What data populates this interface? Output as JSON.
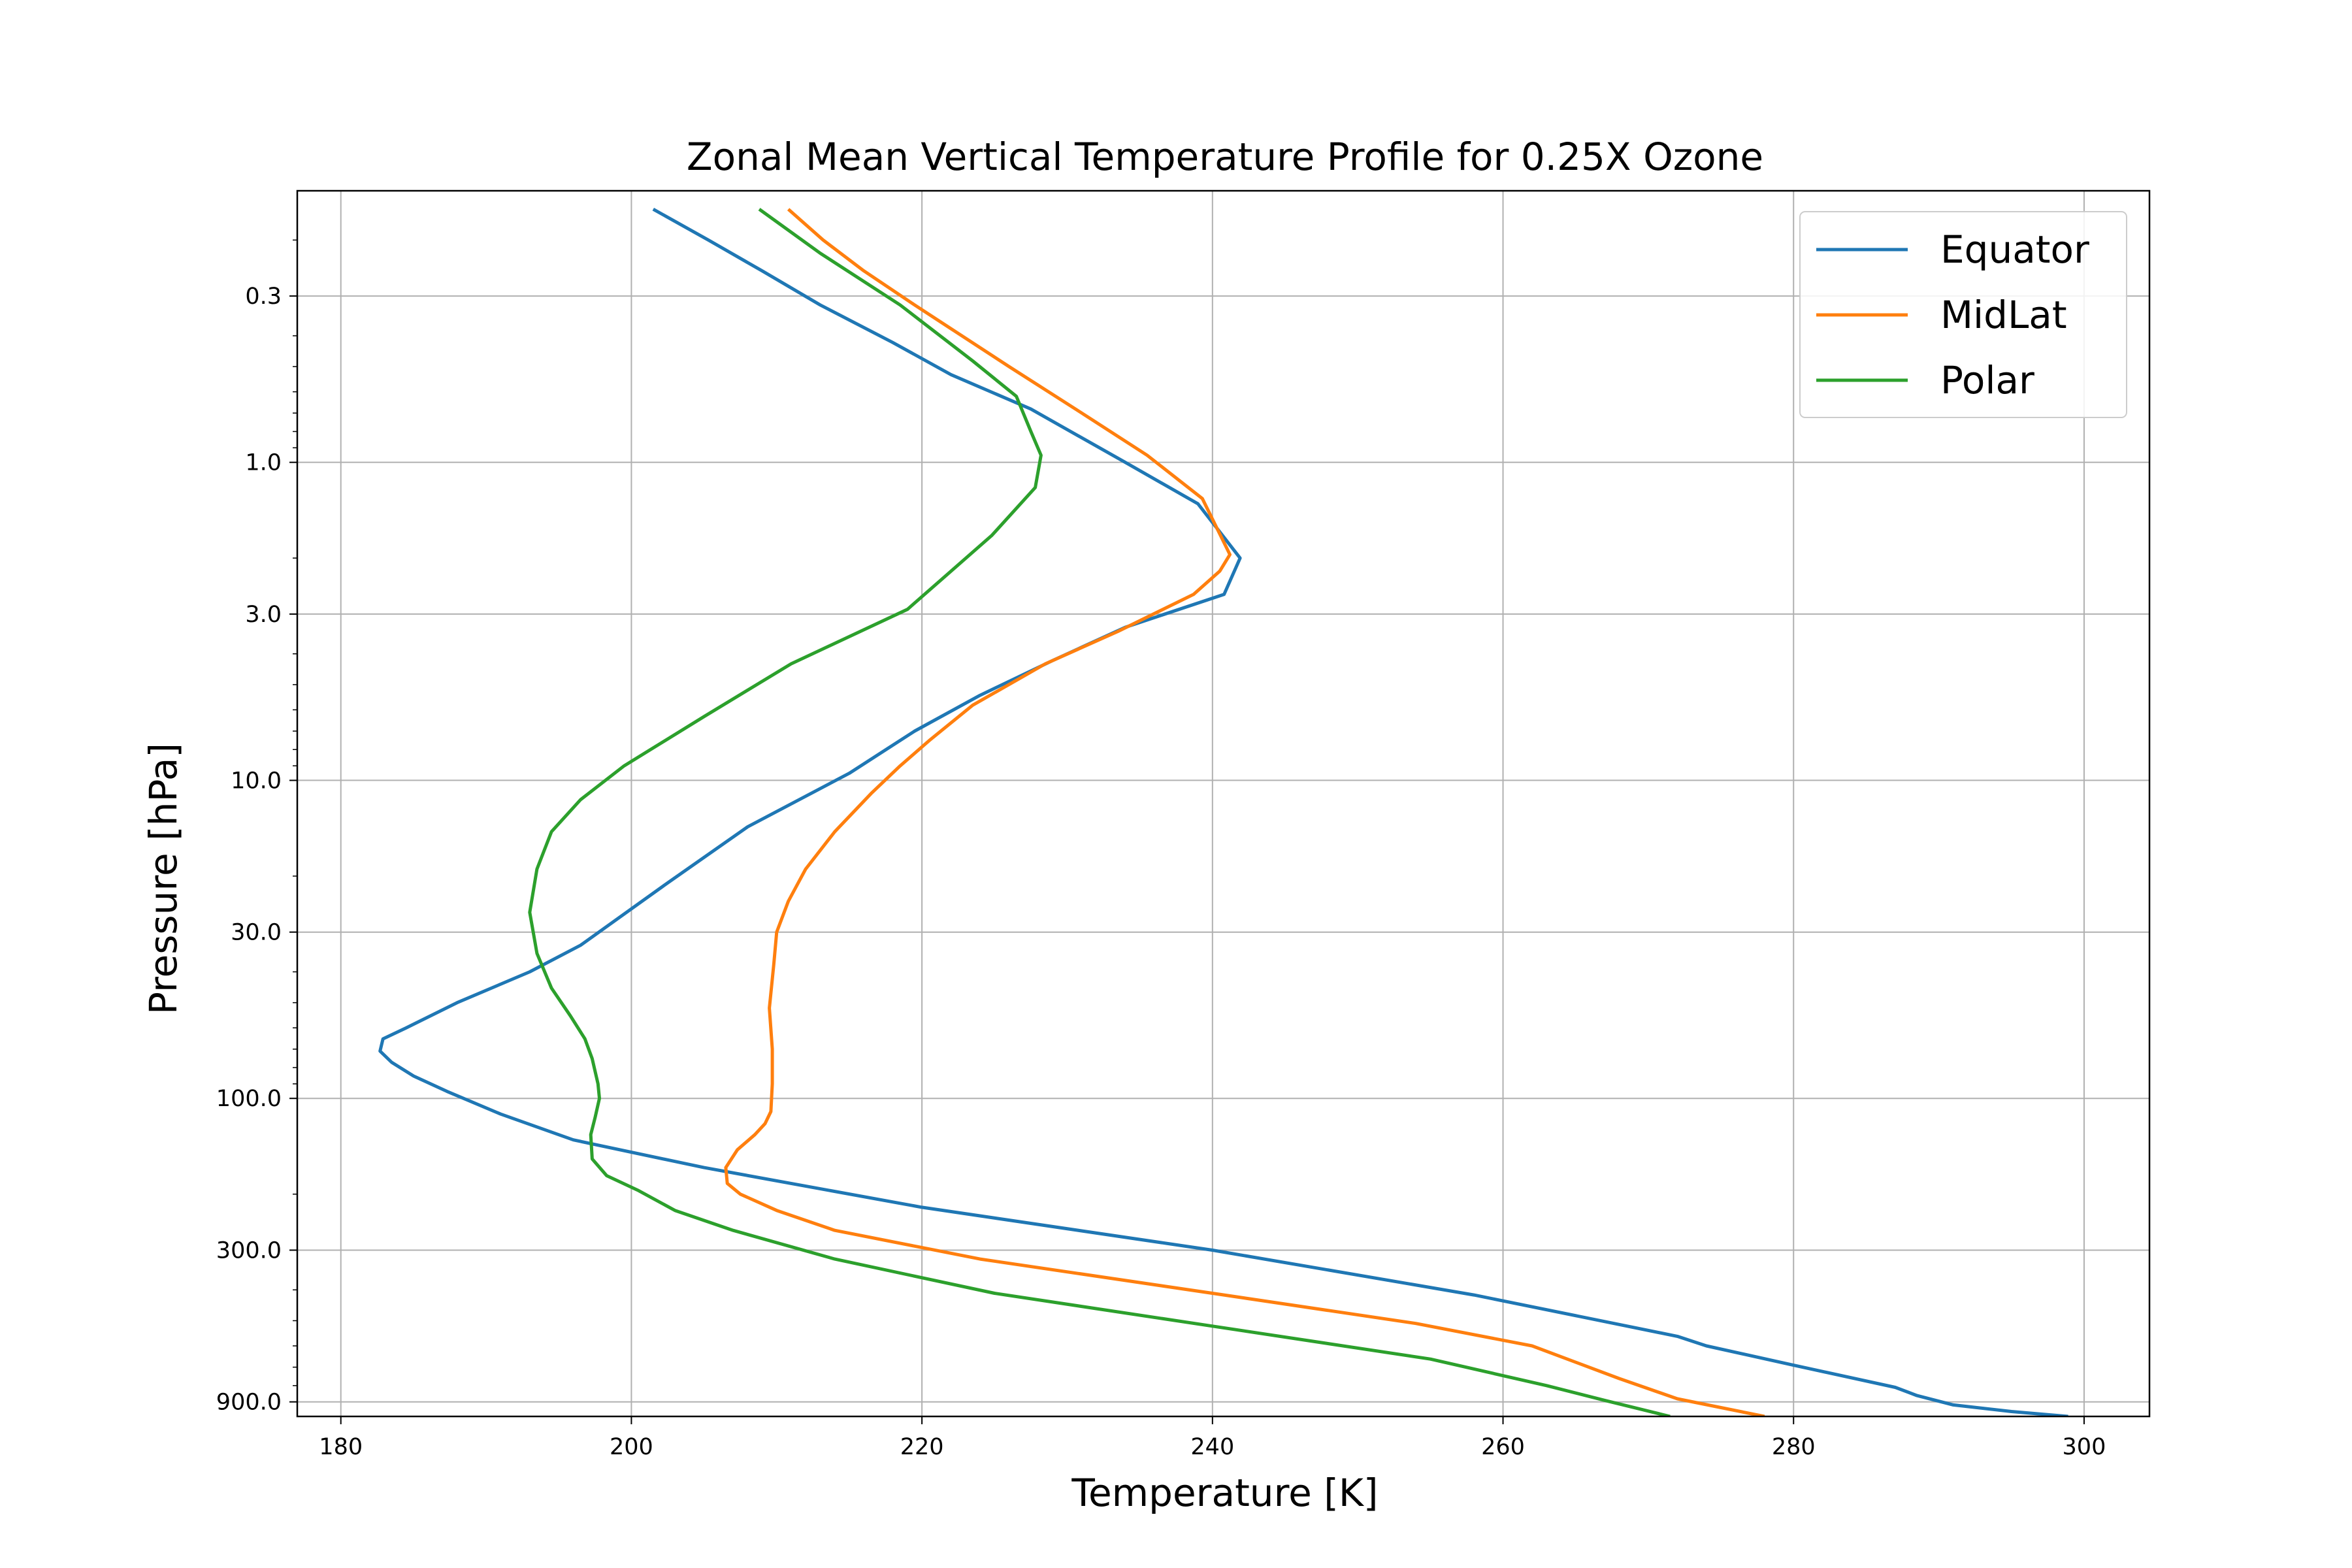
{
  "chart_data": {
    "type": "line",
    "title": "Zonal Mean Vertical Temperature Profile for 0.25X Ozone",
    "xlabel": "Temperature [K]",
    "ylabel": "Pressure [hPa]",
    "xlim": [
      177,
      304.5
    ],
    "ylim": [
      1000,
      0.14
    ],
    "yscale": "log",
    "y_inverted": true,
    "grid": true,
    "legend_position": "top-right",
    "x_ticks": [
      {
        "value": 180,
        "label": "180"
      },
      {
        "value": 200,
        "label": "200"
      },
      {
        "value": 220,
        "label": "220"
      },
      {
        "value": 240,
        "label": "240"
      },
      {
        "value": 260,
        "label": "260"
      },
      {
        "value": 280,
        "label": "280"
      },
      {
        "value": 300,
        "label": "300"
      }
    ],
    "y_ticks": [
      {
        "value": 0.3,
        "label": "0.3"
      },
      {
        "value": 1.0,
        "label": "1.0"
      },
      {
        "value": 3.0,
        "label": "3.0"
      },
      {
        "value": 10.0,
        "label": "10.0"
      },
      {
        "value": 30.0,
        "label": "30.0"
      },
      {
        "value": 100.0,
        "label": "100.0"
      },
      {
        "value": 300.0,
        "label": "300.0"
      },
      {
        "value": 900.0,
        "label": "900.0"
      }
    ],
    "series": [
      {
        "name": "Equator",
        "color": "#1f77b4",
        "points": [
          [
            201.5,
            0.16
          ],
          [
            205.3,
            0.2
          ],
          [
            209,
            0.25
          ],
          [
            213,
            0.32
          ],
          [
            218,
            0.42
          ],
          [
            222,
            0.53
          ],
          [
            227.5,
            0.68
          ],
          [
            234,
            1.0
          ],
          [
            239,
            1.35
          ],
          [
            241.9,
            2.0
          ],
          [
            240.8,
            2.6
          ],
          [
            234,
            3.3
          ],
          [
            229,
            4.2
          ],
          [
            224,
            5.4
          ],
          [
            219.5,
            7.0
          ],
          [
            215,
            9.5
          ],
          [
            208,
            14.0
          ],
          [
            202.5,
            21.0
          ],
          [
            196.5,
            33.0
          ],
          [
            193,
            40.0
          ],
          [
            188,
            50.0
          ],
          [
            184.5,
            60.0
          ],
          [
            182.9,
            65.0
          ],
          [
            182.7,
            71.0
          ],
          [
            183.5,
            77.0
          ],
          [
            185,
            85.0
          ],
          [
            187.3,
            95.0
          ],
          [
            191,
            112.0
          ],
          [
            196,
            135.0
          ],
          [
            205,
            165.0
          ],
          [
            220,
            220.0
          ],
          [
            240,
            300.0
          ],
          [
            258,
            415.0
          ],
          [
            272,
            560.0
          ],
          [
            274,
            600.0
          ],
          [
            280,
            690.0
          ],
          [
            287,
            810.0
          ],
          [
            288.5,
            860.0
          ],
          [
            291,
            920.0
          ],
          [
            295,
            965.0
          ],
          [
            298.9,
            1000.0
          ]
        ]
      },
      {
        "name": "MidLat",
        "color": "#ff7f0e",
        "points": [
          [
            210.8,
            0.16
          ],
          [
            213.2,
            0.2
          ],
          [
            216,
            0.25
          ],
          [
            219.5,
            0.32
          ],
          [
            222,
            0.38
          ],
          [
            226,
            0.5
          ],
          [
            231,
            0.7
          ],
          [
            235.5,
            0.95
          ],
          [
            239.3,
            1.3
          ],
          [
            241.2,
            1.95
          ],
          [
            240.5,
            2.2
          ],
          [
            238.7,
            2.6
          ],
          [
            233.5,
            3.4
          ],
          [
            228.5,
            4.3
          ],
          [
            223.5,
            5.8
          ],
          [
            220.5,
            7.5
          ],
          [
            218.5,
            9.0
          ],
          [
            216.5,
            11.0
          ],
          [
            214,
            14.5
          ],
          [
            212,
            19.0
          ],
          [
            210.8,
            24.0
          ],
          [
            210,
            30.0
          ],
          [
            209.8,
            38.0
          ],
          [
            209.5,
            52.0
          ],
          [
            209.7,
            70.0
          ],
          [
            209.7,
            90.0
          ],
          [
            209.6,
            110.0
          ],
          [
            209.2,
            120.0
          ],
          [
            208.5,
            130.0
          ],
          [
            207.3,
            145.0
          ],
          [
            206.5,
            165.0
          ],
          [
            206.6,
            185.0
          ],
          [
            207.5,
            200.0
          ],
          [
            210,
            225.0
          ],
          [
            214,
            260.0
          ],
          [
            224,
            320.0
          ],
          [
            240,
            410.0
          ],
          [
            254,
            510.0
          ],
          [
            262,
            600.0
          ],
          [
            268,
            760.0
          ],
          [
            272,
            880.0
          ],
          [
            278,
            1000.0
          ]
        ]
      },
      {
        "name": "Polar",
        "color": "#2ca02c",
        "points": [
          [
            208.8,
            0.16
          ],
          [
            213,
            0.22
          ],
          [
            218.5,
            0.32
          ],
          [
            223.5,
            0.48
          ],
          [
            226.5,
            0.62
          ],
          [
            227.5,
            0.8
          ],
          [
            228.2,
            0.95
          ],
          [
            227.8,
            1.2
          ],
          [
            224.8,
            1.7
          ],
          [
            219,
            2.9
          ],
          [
            211,
            4.3
          ],
          [
            205,
            6.3
          ],
          [
            199.5,
            9.0
          ],
          [
            196.5,
            11.5
          ],
          [
            194.5,
            14.5
          ],
          [
            193.5,
            19.0
          ],
          [
            193,
            26.0
          ],
          [
            193.5,
            35.0
          ],
          [
            194.5,
            45.0
          ],
          [
            195.8,
            55.0
          ],
          [
            196.8,
            65.0
          ],
          [
            197.3,
            75.0
          ],
          [
            197.7,
            90.0
          ],
          [
            197.8,
            100.0
          ],
          [
            197.5,
            115.0
          ],
          [
            197.2,
            130.0
          ],
          [
            197.3,
            155.0
          ],
          [
            198.3,
            175.0
          ],
          [
            200.5,
            195.0
          ],
          [
            203,
            225.0
          ],
          [
            207,
            260.0
          ],
          [
            214,
            320.0
          ],
          [
            225,
            410.0
          ],
          [
            240,
            520.0
          ],
          [
            255,
            660.0
          ],
          [
            263,
            800.0
          ],
          [
            267,
            890.0
          ],
          [
            271.5,
            1000.0
          ]
        ]
      }
    ]
  }
}
